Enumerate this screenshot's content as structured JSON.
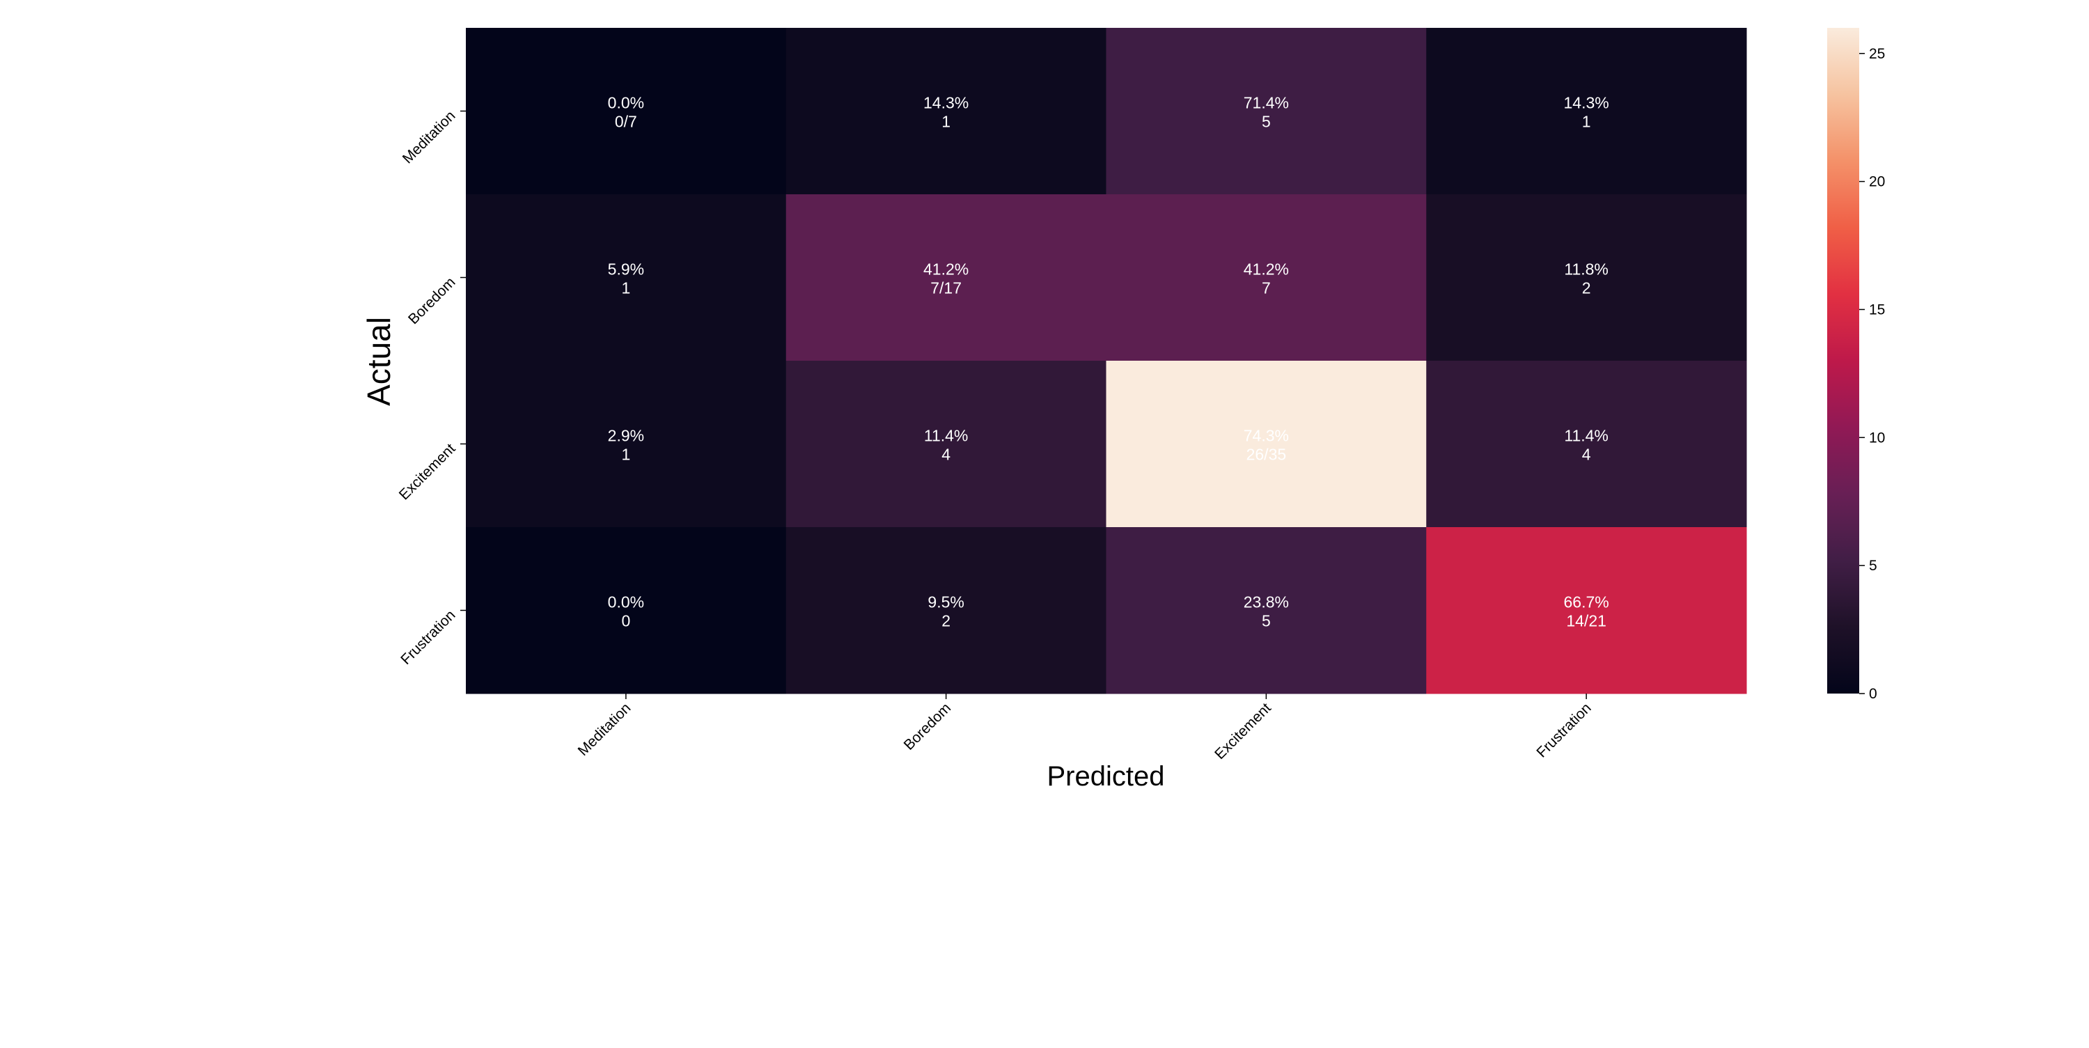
{
  "chart_data": {
    "type": "heatmap",
    "title": "",
    "xlabel": "Predicted",
    "ylabel": "Actual",
    "x_categories": [
      "Meditation",
      "Boredom",
      "Excitement",
      "Frustration"
    ],
    "y_categories": [
      "Meditation",
      "Boredom",
      "Excitement",
      "Frustration"
    ],
    "values": [
      [
        0,
        1,
        5,
        1
      ],
      [
        1,
        7,
        7,
        2
      ],
      [
        1,
        4,
        26,
        4
      ],
      [
        0,
        2,
        5,
        14
      ]
    ],
    "annotations": [
      [
        [
          "0.0%",
          "0/7"
        ],
        [
          "14.3%",
          "1"
        ],
        [
          "71.4%",
          "5"
        ],
        [
          "14.3%",
          "1"
        ]
      ],
      [
        [
          "5.9%",
          "1"
        ],
        [
          "41.2%",
          "7/17"
        ],
        [
          "41.2%",
          "7"
        ],
        [
          "11.8%",
          "2"
        ]
      ],
      [
        [
          "2.9%",
          "1"
        ],
        [
          "11.4%",
          "4"
        ],
        [
          "74.3%",
          "26/35"
        ],
        [
          "11.4%",
          "4"
        ]
      ],
      [
        [
          "0.0%",
          "0"
        ],
        [
          "9.5%",
          "2"
        ],
        [
          "23.8%",
          "5"
        ],
        [
          "66.7%",
          "14/21"
        ]
      ]
    ],
    "colorbar": {
      "min": 0,
      "max": 26,
      "ticks": [
        0,
        5,
        10,
        15,
        20,
        25
      ],
      "tick_labels": [
        "0",
        "5",
        "10",
        "15",
        "20",
        "25"
      ],
      "colormap": "rocket"
    },
    "grid": false,
    "legend": "colorbar-right"
  },
  "colors": {
    "low": "#03051A",
    "high": "#FAEBDD",
    "cell_text": "#FFFFFF",
    "axis_text": "#000000"
  }
}
